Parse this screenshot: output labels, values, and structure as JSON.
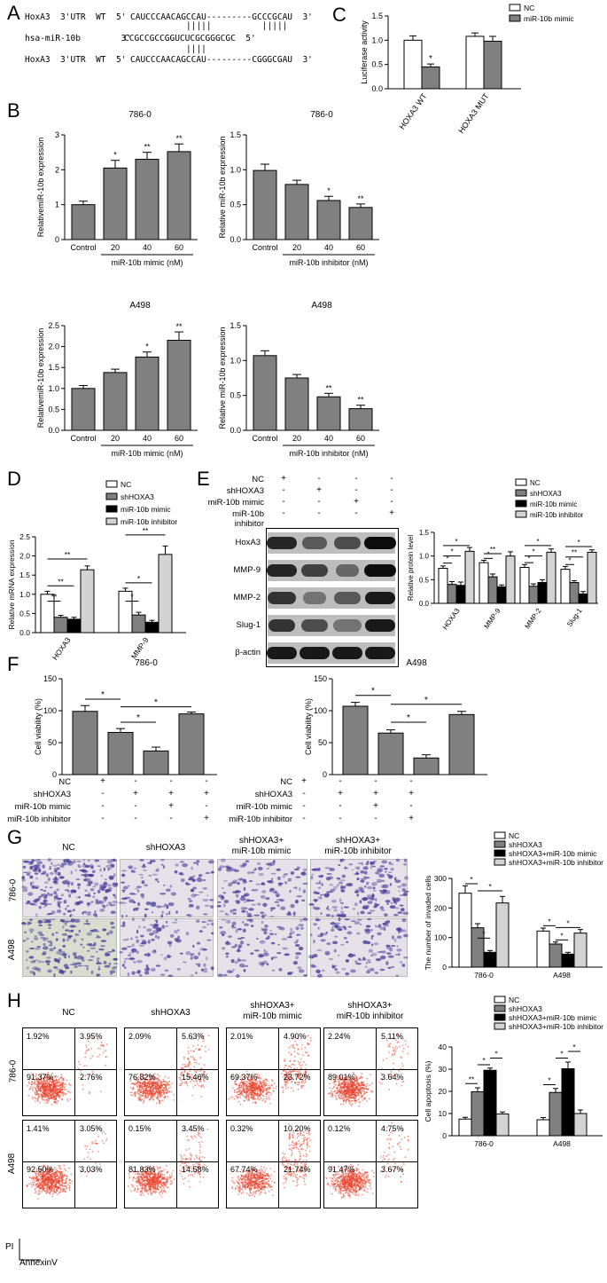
{
  "panels": {
    "A": {
      "letter": "A",
      "rows": [
        {
          "left": "HoxA3  3'UTR  WT  5'",
          "seq": "CAUCCCAACAGCCAU---------GCCCGCAU  3'"
        },
        {
          "bars": "|||||          |||||"
        },
        {
          "left": "hsa-miR-10b        3'",
          "seq": "CCGCCGCCGGUCUCGCGGGCGC  5'"
        },
        {
          "bars": "||||"
        },
        {
          "left": "HoxA3  3'UTR  WT  5'",
          "seq": "CAUCCCAACAGCCAU---------CGGGCGAU  3'"
        }
      ]
    },
    "B": {
      "letter": "B"
    },
    "C": {
      "letter": "C"
    },
    "D": {
      "letter": "D"
    },
    "E": {
      "letter": "E"
    },
    "F": {
      "letter": "F"
    },
    "G": {
      "letter": "G"
    },
    "H": {
      "letter": "H"
    }
  },
  "colors": {
    "white_bar": "#ffffff",
    "gray_bar": "#808080",
    "black_bar": "#000000",
    "light_bar": "#d3d3d3",
    "micro_bg": "#e6e0e8",
    "micro_cell": "#4b3f99",
    "flow_dot": "#e8402a"
  },
  "chart_data": [
    {
      "id": "C",
      "type": "bar",
      "ylabel": "Luciferase activity",
      "ylim": [
        0,
        1.5
      ],
      "yticks": [
        "0.0",
        "0.5",
        "1.0",
        "1.5"
      ],
      "categories": [
        "HOXA3 WT",
        "HOXA3 MUT"
      ],
      "legend": [
        "NC",
        "miR-10b mimic"
      ],
      "series": [
        {
          "name": "NC",
          "values": [
            1.0,
            1.08
          ],
          "errors": [
            0.09,
            0.07
          ]
        },
        {
          "name": "miR-10b mimic",
          "values": [
            0.45,
            0.98
          ],
          "errors": [
            0.06,
            0.1
          ]
        }
      ],
      "annotations": [
        {
          "cat": 0,
          "series": 1,
          "text": "*"
        }
      ]
    },
    {
      "id": "B1",
      "type": "bar",
      "title": "786-0",
      "ylabel": "RelativemiR-10b expression",
      "ylim": [
        0,
        3
      ],
      "yticks": [
        "0",
        "1",
        "2",
        "3"
      ],
      "categories": [
        "Control",
        "20",
        "40",
        "60"
      ],
      "values": [
        1.0,
        2.05,
        2.3,
        2.52
      ],
      "errors": [
        0.1,
        0.22,
        0.2,
        0.22
      ],
      "stars": [
        "",
        "*",
        "**",
        "**"
      ],
      "group_label": "miR-10b mimic (nM)"
    },
    {
      "id": "B2",
      "type": "bar",
      "title": "786-0",
      "ylabel": "Relative miR-10b expression",
      "ylim": [
        0,
        1.5
      ],
      "yticks": [
        "0.0",
        "0.5",
        "1.0",
        "1.5"
      ],
      "categories": [
        "Control",
        "20",
        "40",
        "60"
      ],
      "values": [
        0.99,
        0.79,
        0.56,
        0.46
      ],
      "errors": [
        0.09,
        0.06,
        0.06,
        0.05
      ],
      "stars": [
        "",
        "",
        "*",
        "**"
      ],
      "group_label": "miR-10b inhibitor (nM)"
    },
    {
      "id": "B3",
      "type": "bar",
      "title": "A498",
      "ylabel": "RelativemiR-10b expression",
      "ylim": [
        0,
        2.5
      ],
      "yticks": [
        "0.0",
        "0.5",
        "1.0",
        "1.5",
        "2.0",
        "2.5"
      ],
      "categories": [
        "Control",
        "20",
        "40",
        "60"
      ],
      "values": [
        1.0,
        1.38,
        1.75,
        2.15
      ],
      "errors": [
        0.07,
        0.08,
        0.12,
        0.2
      ],
      "stars": [
        "",
        "",
        "*",
        "**"
      ],
      "group_label": "miR-10b mimic (nM)"
    },
    {
      "id": "B4",
      "type": "bar",
      "title": "A498",
      "ylabel": "Relative miR-10b expression",
      "ylim": [
        0,
        1.5
      ],
      "yticks": [
        "0.0",
        "0.5",
        "1.0",
        "1.5"
      ],
      "categories": [
        "Control",
        "20",
        "40",
        "60"
      ],
      "values": [
        1.07,
        0.75,
        0.48,
        0.31
      ],
      "errors": [
        0.07,
        0.05,
        0.05,
        0.05
      ],
      "stars": [
        "",
        "",
        "**",
        "**"
      ],
      "group_label": "miR-10b inhibitor (nM)"
    },
    {
      "id": "D",
      "type": "bar",
      "ylabel": "Relative mRNA expression",
      "ylim": [
        0,
        2.5
      ],
      "yticks": [
        "0.0",
        "0.5",
        "1.0",
        "1.5",
        "2.0",
        "2.5"
      ],
      "categories": [
        "HOXA3",
        "MMP-9"
      ],
      "legend": [
        "NC",
        "shHOXA3",
        "miR-10b mimic",
        "miR-10b inhibitor"
      ],
      "series": [
        {
          "name": "NC",
          "values": [
            1.0,
            1.08
          ],
          "errors": [
            0.08,
            0.08
          ]
        },
        {
          "name": "shHOXA3",
          "values": [
            0.4,
            0.46
          ],
          "errors": [
            0.05,
            0.07
          ]
        },
        {
          "name": "miR-10b mimic",
          "values": [
            0.35,
            0.27
          ],
          "errors": [
            0.05,
            0.05
          ]
        },
        {
          "name": "miR-10b inhibitor",
          "values": [
            1.64,
            2.04
          ],
          "errors": [
            0.1,
            0.22
          ]
        }
      ],
      "brackets": [
        {
          "cat": 0,
          "from": 0,
          "to": 1,
          "level": 0.82,
          "text": "**"
        },
        {
          "cat": 0,
          "from": 0,
          "to": 2,
          "level": 1.22,
          "text": "**"
        },
        {
          "cat": 0,
          "from": 0,
          "to": 3,
          "level": 1.92,
          "text": "**"
        },
        {
          "cat": 1,
          "from": 0,
          "to": 1,
          "level": 0.82,
          "text": "*"
        },
        {
          "cat": 1,
          "from": 0,
          "to": 2,
          "level": 1.3,
          "text": "*"
        },
        {
          "cat": 1,
          "from": 0,
          "to": 3,
          "level": 2.55,
          "text": "**"
        }
      ]
    },
    {
      "id": "E",
      "type": "bar",
      "ylabel": "Relative protein level",
      "ylim": [
        0,
        1.5
      ],
      "yticks": [
        "0.0",
        "0.5",
        "1.0",
        "1.5"
      ],
      "categories": [
        "HOXA3",
        "MMP-9",
        "MMP-2",
        "Slug-1"
      ],
      "legend": [
        "NC",
        "shHOXA3",
        "miR-10b mimic",
        "miR-10b inhibitor"
      ],
      "series": [
        {
          "name": "NC",
          "values": [
            0.74,
            0.86,
            0.76,
            0.72
          ],
          "errors": [
            0.05,
            0.05,
            0.06,
            0.06
          ]
        },
        {
          "name": "shHOXA3",
          "values": [
            0.4,
            0.56,
            0.36,
            0.44
          ],
          "errors": [
            0.06,
            0.06,
            0.05,
            0.04
          ]
        },
        {
          "name": "miR-10b mimic",
          "values": [
            0.38,
            0.35,
            0.44,
            0.2
          ],
          "errors": [
            0.07,
            0.04,
            0.06,
            0.05
          ]
        },
        {
          "name": "miR-10b inhibitor",
          "values": [
            1.1,
            1.0,
            1.08,
            1.08
          ],
          "errors": [
            0.08,
            0.09,
            0.07,
            0.05
          ]
        }
      ],
      "brackets": [
        {
          "cat": 0,
          "from": 0,
          "to": 1,
          "level": 0.85,
          "text": "*"
        },
        {
          "cat": 0,
          "from": 0,
          "to": 2,
          "level": 1.0,
          "text": "*"
        },
        {
          "cat": 0,
          "from": 0,
          "to": 3,
          "level": 1.22,
          "text": "*"
        },
        {
          "cat": 1,
          "from": 0,
          "to": 1,
          "level": 0.95,
          "text": "*"
        },
        {
          "cat": 1,
          "from": 0,
          "to": 2,
          "level": 1.05,
          "text": "**"
        },
        {
          "cat": 2,
          "from": 0,
          "to": 1,
          "level": 0.86,
          "text": "*"
        },
        {
          "cat": 2,
          "from": 0,
          "to": 2,
          "level": 1.0,
          "text": "*"
        },
        {
          "cat": 2,
          "from": 0,
          "to": 3,
          "level": 1.22,
          "text": "*"
        },
        {
          "cat": 3,
          "from": 0,
          "to": 1,
          "level": 0.82,
          "text": "*"
        },
        {
          "cat": 3,
          "from": 0,
          "to": 2,
          "level": 0.98,
          "text": "**"
        },
        {
          "cat": 3,
          "from": 0,
          "to": 3,
          "level": 1.2,
          "text": "*"
        }
      ]
    },
    {
      "id": "F1",
      "type": "bar",
      "title": "786-0",
      "ylabel": "Cell viability (%)",
      "ylim": [
        0,
        150
      ],
      "yticks": [
        "0",
        "50",
        "100",
        "150"
      ],
      "values": [
        99,
        66,
        37,
        95
      ],
      "errors": [
        9,
        6,
        6,
        3
      ],
      "brackets": [
        {
          "from": 0,
          "to": 1,
          "level": 118,
          "text": "*"
        },
        {
          "from": 1,
          "to": 2,
          "level": 82,
          "text": "*"
        },
        {
          "from": 1,
          "to": 3,
          "level": 106,
          "text": "*"
        }
      ]
    },
    {
      "id": "F2",
      "type": "bar",
      "title": "A498",
      "ylabel": "Cell viability (%)",
      "ylim": [
        0,
        150
      ],
      "yticks": [
        "0",
        "50",
        "100",
        "150"
      ],
      "values": [
        107,
        65,
        26,
        94
      ],
      "errors": [
        6,
        5,
        5,
        5
      ],
      "brackets": [
        {
          "from": 0,
          "to": 1,
          "level": 124,
          "text": "*"
        },
        {
          "from": 1,
          "to": 2,
          "level": 82,
          "text": "*"
        },
        {
          "from": 1,
          "to": 3,
          "level": 110,
          "text": "*"
        }
      ]
    },
    {
      "id": "G",
      "type": "bar",
      "ylabel": "The number of invaded cells",
      "ylim": [
        0,
        300
      ],
      "yticks": [
        "0",
        "100",
        "200",
        "300"
      ],
      "categories": [
        "786-0",
        "A498"
      ],
      "legend": [
        "NC",
        "shHOXA3",
        "shHOXA3+miR-10b mimic",
        "shHOXA3+miR-10b inhibitor"
      ],
      "series": [
        {
          "name": "NC",
          "values": [
            250,
            122
          ],
          "errors": [
            25,
            10
          ]
        },
        {
          "name": "shHOXA3",
          "values": [
            133,
            78
          ],
          "errors": [
            14,
            7
          ]
        },
        {
          "name": "shHOXA3+miR-10b mimic",
          "values": [
            50,
            44
          ],
          "errors": [
            6,
            6
          ]
        },
        {
          "name": "shHOXA3+miR-10b inhibitor",
          "values": [
            217,
            115
          ],
          "errors": [
            22,
            12
          ]
        }
      ],
      "brackets": [
        {
          "cat": 0,
          "from": 0,
          "to": 1,
          "level": 282,
          "text": "*"
        },
        {
          "cat": 0,
          "from": 1,
          "to": 2,
          "level": 98,
          "text": "*"
        },
        {
          "cat": 0,
          "from": 1,
          "to": 3,
          "level": 258,
          "text": "*"
        },
        {
          "cat": 1,
          "from": 0,
          "to": 1,
          "level": 140,
          "text": "*"
        },
        {
          "cat": 1,
          "from": 1,
          "to": 2,
          "level": 92,
          "text": "*"
        },
        {
          "cat": 1,
          "from": 1,
          "to": 3,
          "level": 134,
          "text": "*"
        }
      ]
    },
    {
      "id": "H",
      "type": "bar",
      "ylabel": "Cell apoptosis (%)",
      "ylim": [
        0,
        40
      ],
      "yticks": [
        "0",
        "10",
        "20",
        "30",
        "40"
      ],
      "categories": [
        "786-0",
        "A498"
      ],
      "legend": [
        "NC",
        "shHOXA3",
        "shHOXA3+miR-10b mimic",
        "shHOXA3+miR-10b inhibitor"
      ],
      "series": [
        {
          "name": "NC",
          "values": [
            7.5,
            7.2
          ],
          "errors": [
            0.8,
            1.0
          ]
        },
        {
          "name": "shHOXA3",
          "values": [
            19.8,
            19.5
          ],
          "errors": [
            1.8,
            1.8
          ]
        },
        {
          "name": "shHOXA3+miR-10b mimic",
          "values": [
            29.5,
            30.2
          ],
          "errors": [
            1.0,
            3.0
          ]
        },
        {
          "name": "shHOXA3+miR-10b inhibitor",
          "values": [
            9.8,
            10.0
          ],
          "errors": [
            0.9,
            1.6
          ]
        }
      ],
      "brackets": [
        {
          "cat": 0,
          "from": 0,
          "to": 1,
          "level": 23.5,
          "text": "**"
        },
        {
          "cat": 0,
          "from": 1,
          "to": 2,
          "level": 32,
          "text": "*"
        },
        {
          "cat": 0,
          "from": 2,
          "to": 3,
          "level": 35,
          "text": "*"
        },
        {
          "cat": 1,
          "from": 0,
          "to": 1,
          "level": 23,
          "text": "*"
        },
        {
          "cat": 1,
          "from": 1,
          "to": 2,
          "level": 35,
          "text": "*"
        },
        {
          "cat": 1,
          "from": 2,
          "to": 3,
          "level": 38,
          "text": "*"
        }
      ]
    }
  ],
  "treatment_tables": {
    "E": {
      "rows": [
        {
          "label": "NC",
          "signs": [
            "+",
            "-",
            "-",
            "-"
          ]
        },
        {
          "label": "shHOXA3",
          "signs": [
            "-",
            "+",
            "-",
            "-"
          ]
        },
        {
          "label": "miR-10b mimic",
          "signs": [
            "-",
            "-",
            "+",
            "-"
          ]
        },
        {
          "label": "miR-10b inhibitor",
          "signs": [
            "-",
            "-",
            "-",
            "+"
          ]
        }
      ],
      "bands": [
        "HoxA3",
        "MMP-9",
        "MMP-2",
        "Slug-1",
        "β-actin"
      ]
    },
    "F": {
      "rows": [
        {
          "label": "NC",
          "signs": [
            "+",
            "-",
            "-",
            "-"
          ]
        },
        {
          "label": "shHOXA3",
          "signs": [
            "-",
            "+",
            "+",
            "+"
          ]
        },
        {
          "label": "miR-10b mimic",
          "signs": [
            "-",
            "-",
            "+",
            "-"
          ]
        },
        {
          "label": "miR-10b inhibitor",
          "signs": [
            "-",
            "-",
            "-",
            "+"
          ]
        }
      ]
    }
  },
  "G_images": {
    "col_labels": [
      "NC",
      "shHOXA3",
      "shHOXA3+\nmiR-10b mimic",
      "shHOXA3+\nmiR-10b inhibitor"
    ],
    "row_labels": [
      "786-0",
      "A498"
    ]
  },
  "H_flow": {
    "col_labels": [
      "NC",
      "shHOXA3",
      "shHOXA3+\nmiR-10b mimic",
      "shHOXA3+\nmiR-10b inhibitor"
    ],
    "row_labels": [
      "786-0",
      "A498"
    ],
    "x_axis": "AnnexinV",
    "y_axis": "PI",
    "quadrants": [
      [
        [
          "1.92%",
          "3.95%",
          "91.37%",
          "2.76%"
        ],
        [
          "2.09%",
          "5.63%",
          "76.82%",
          "15.46%"
        ],
        [
          "2.01%",
          "4.90%",
          "69.37%",
          "23.72%"
        ],
        [
          "2.24%",
          "5.11%",
          "89.01%",
          "3.64%"
        ]
      ],
      [
        [
          "1.41%",
          "3.05%",
          "92.50%",
          "3.03%"
        ],
        [
          "0.15%",
          "3.45%",
          "81.83%",
          "14.58%"
        ],
        [
          "0.32%",
          "10.20%",
          "67.74%",
          "21.74%"
        ],
        [
          "0.12%",
          "4.75%",
          "91.47%",
          "3.67%"
        ]
      ]
    ]
  }
}
